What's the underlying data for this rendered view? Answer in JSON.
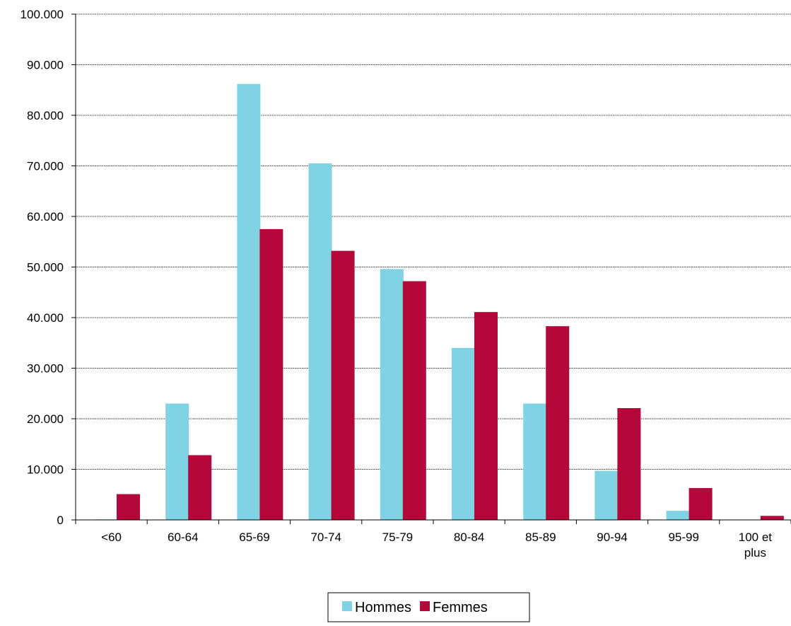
{
  "chart_data": {
    "type": "bar",
    "categories": [
      "<60",
      "60-64",
      "65-69",
      "70-74",
      "75-79",
      "80-84",
      "85-89",
      "90-94",
      "95-99",
      "100 et plus"
    ],
    "category_lines": [
      [
        "<60"
      ],
      [
        "60-64"
      ],
      [
        "65-69"
      ],
      [
        "70-74"
      ],
      [
        "75-79"
      ],
      [
        "80-84"
      ],
      [
        "85-89"
      ],
      [
        "90-94"
      ],
      [
        "95-99"
      ],
      [
        "100 et",
        "plus"
      ]
    ],
    "series": [
      {
        "name": "Hommes",
        "color": "#7fd3e3",
        "values": [
          100,
          23000,
          86200,
          70500,
          49600,
          34000,
          23000,
          9700,
          1800,
          50
        ]
      },
      {
        "name": "Femmes",
        "color": "#b5083a",
        "values": [
          5100,
          12800,
          57500,
          53200,
          47200,
          41100,
          38300,
          22100,
          6300,
          800
        ]
      }
    ],
    "yticks": [
      "0",
      "10.000",
      "20.000",
      "30.000",
      "40.000",
      "50.000",
      "60.000",
      "70.000",
      "80.000",
      "90.000",
      "100.000"
    ],
    "ylim": [
      0,
      100000
    ],
    "grid": true,
    "legend_position": "bottom-center",
    "title": "",
    "xlabel": "",
    "ylabel": ""
  }
}
